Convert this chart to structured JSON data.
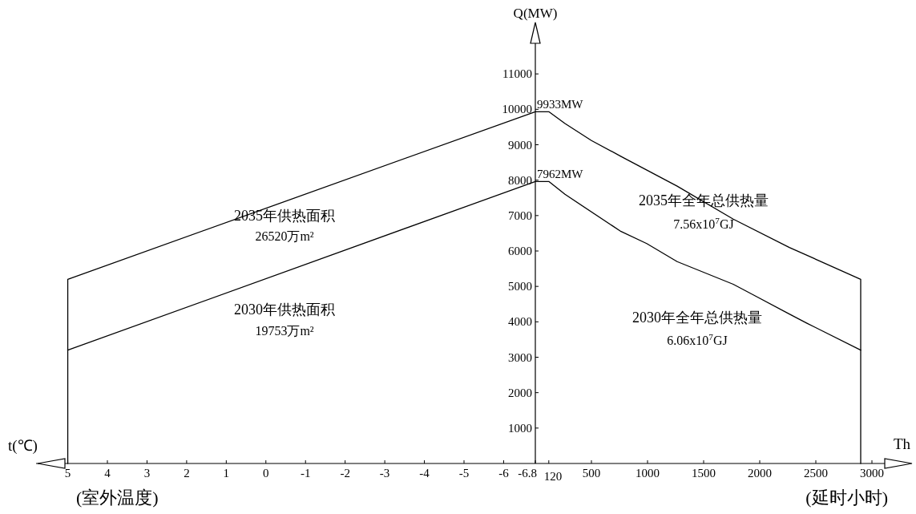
{
  "chart_data": [
    {
      "type": "line",
      "xlabel": "t(℃)",
      "ylabel": "Q(MW)",
      "xlim": [
        5.8,
        -6.8
      ],
      "xticks": [
        5,
        4,
        3,
        2,
        1,
        0,
        -1,
        -2,
        -3,
        -4,
        -5,
        -6,
        -6.8
      ],
      "ylim": [
        0,
        12000
      ],
      "yticks": [
        1000,
        2000,
        3000,
        4000,
        5000,
        6000,
        7000,
        8000,
        9000,
        10000,
        11000
      ],
      "series": [
        {
          "color": "#000000",
          "x": [
            5,
            5,
            -6.8
          ],
          "values": [
            0,
            5200,
            9933
          ]
        },
        {
          "color": "#000000",
          "x": [
            5,
            -6.8
          ],
          "values": [
            3200,
            7962
          ]
        }
      ],
      "annotations": [
        "(室外温度)",
        "2035年供热面积",
        "26520万m²",
        "2030年供热面积",
        "19753万m²"
      ]
    },
    {
      "type": "line",
      "xlabel": "Th",
      "xlim": [
        0,
        3300
      ],
      "xticks": [
        120,
        500,
        1000,
        1500,
        2000,
        2500,
        3000
      ],
      "ylim": [
        0,
        12000
      ],
      "tick_labels": "x",
      "series": [
        {
          "color": "#000000",
          "x": [
            0,
            120,
            264,
            500,
            764,
            1264,
            1764,
            2264,
            2900,
            2900
          ],
          "values": [
            9933,
            9933,
            9600,
            9120,
            8670,
            7830,
            6900,
            6100,
            5200,
            0
          ]
        },
        {
          "color": "#000000",
          "x": [
            0,
            120,
            264,
            764,
            993,
            1264,
            1764,
            1943,
            2264,
            2421,
            2900
          ],
          "values": [
            7962,
            7962,
            7600,
            6550,
            6210,
            5700,
            5060,
            4760,
            4220,
            3960,
            3200
          ]
        }
      ],
      "annotations": [
        "(延时小时)",
        "2035年全年总供热量",
        "7.56x10$^{7}$GJ",
        "2030年全年总供热量",
        "6.06x10$^{7}$GJ",
        {
          "text": "9933MW",
          "x": 0,
          "y": 9933
        },
        {
          "text": "7962MW",
          "x": 0,
          "y": 7962
        }
      ]
    }
  ]
}
